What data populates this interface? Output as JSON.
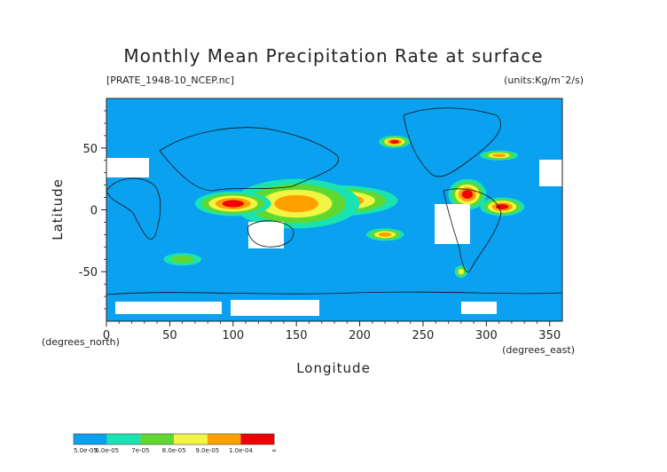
{
  "chart_data": {
    "type": "heatmap",
    "title": "Monthly Mean Precipitation Rate at surface",
    "subtitle_left": "[PRATE_1948-10_NCEP.nc]",
    "subtitle_right": "(units:Kg/m¯2/s)",
    "xlabel": "Longitude",
    "ylabel": "Latitude",
    "x_unit_label": "(degrees_east)",
    "y_unit_label": "(degrees_north)",
    "xlim": [
      0,
      360
    ],
    "ylim": [
      -90,
      90
    ],
    "x_ticks": [
      0,
      50,
      100,
      150,
      200,
      250,
      300,
      350
    ],
    "y_ticks": [
      50,
      0,
      -50
    ],
    "background_level_color": "#0aa1f0",
    "colorbar": {
      "colors": [
        "#0aa1f0",
        "#19e3b1",
        "#60d832",
        "#f2f542",
        "#ffa000",
        "#f00000"
      ],
      "labels": [
        "5.0e-05",
        "6.0e-05",
        "7e-05",
        "8.0e-05",
        "9.0e-05",
        "1.0e-04",
        "∞"
      ]
    },
    "regions": [
      {
        "lon": [
          130,
          230
        ],
        "lat": [
          -5,
          20
        ],
        "level": 5
      },
      {
        "lon": [
          100,
          200
        ],
        "lat": [
          -15,
          25
        ],
        "level": 4
      },
      {
        "lon": [
          70,
          130
        ],
        "lat": [
          -5,
          15
        ],
        "level": 5
      },
      {
        "lon": [
          270,
          300
        ],
        "lat": [
          0,
          25
        ],
        "level": 5
      },
      {
        "lon": [
          295,
          330
        ],
        "lat": [
          -5,
          10
        ],
        "level": 5
      },
      {
        "lon": [
          205,
          235
        ],
        "lat": [
          -25,
          -15
        ],
        "level": 4
      },
      {
        "lon": [
          215,
          240
        ],
        "lat": [
          50,
          60
        ],
        "level": 5
      },
      {
        "lon": [
          295,
          325
        ],
        "lat": [
          40,
          48
        ],
        "level": 4
      },
      {
        "lon": [
          45,
          75
        ],
        "lat": [
          -45,
          -35
        ],
        "level": 2
      },
      {
        "lon": [
          275,
          285
        ],
        "lat": [
          -55,
          -45
        ],
        "level": 3
      }
    ]
  }
}
